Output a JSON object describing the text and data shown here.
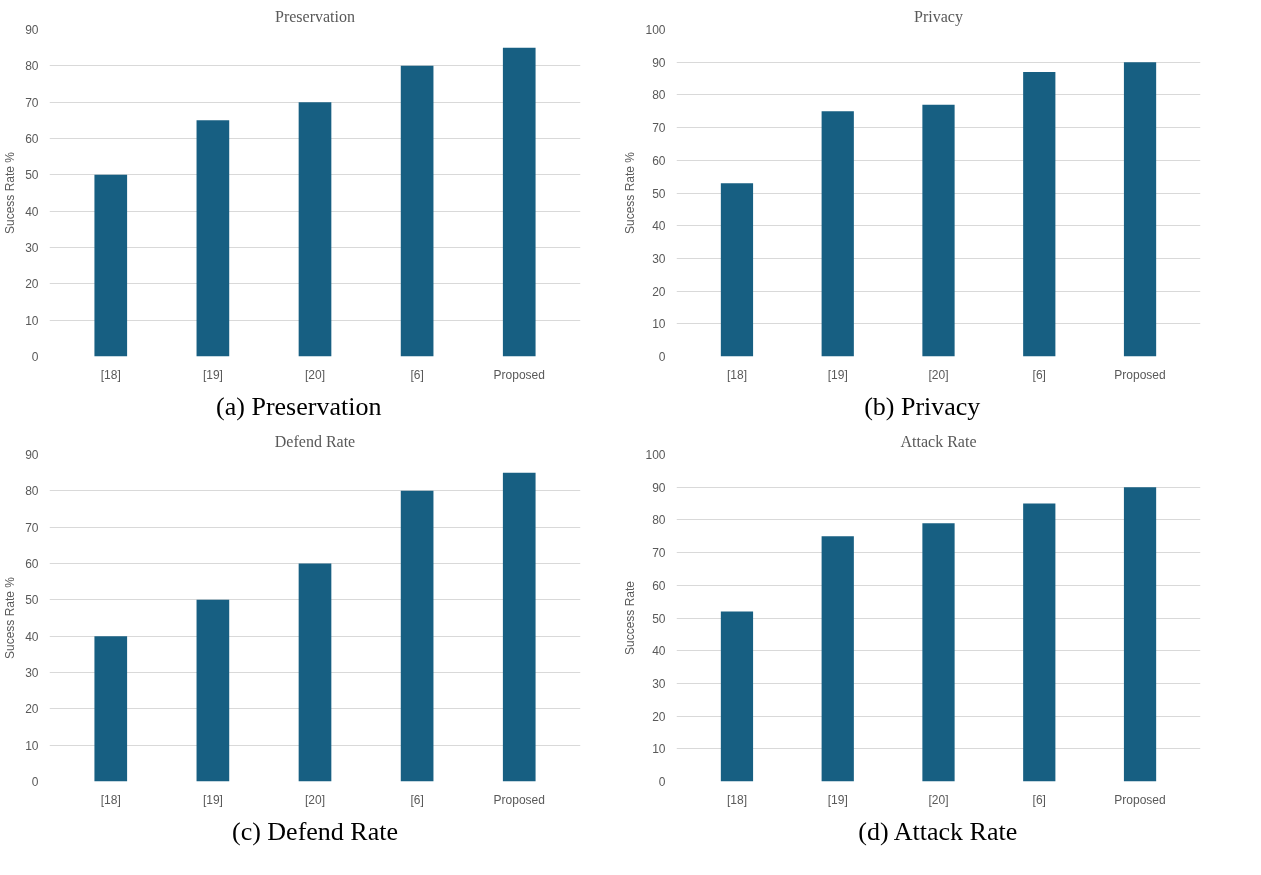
{
  "chart_data": [
    {
      "type": "bar",
      "title": "Preservation",
      "ylabel": "Sucess Rate %",
      "categories": [
        "[18]",
        "[19]",
        "[20]",
        "[6]",
        "Proposed"
      ],
      "values": [
        50,
        65,
        70,
        80,
        85
      ],
      "color": "#175f82",
      "ylim": [
        0,
        90
      ],
      "yticks": [
        0,
        10,
        20,
        30,
        40,
        50,
        60,
        70,
        80,
        90
      ],
      "grid": "y",
      "annotations": [
        "(a)      Preservation"
      ]
    },
    {
      "type": "bar",
      "title": "Privacy",
      "ylabel": "Sucess Rate %",
      "categories": [
        "[18]",
        "[19]",
        "[20]",
        "[6]",
        "Proposed"
      ],
      "values": [
        53,
        75,
        77,
        87,
        90
      ],
      "color": "#175f82",
      "ylim": [
        0,
        100
      ],
      "yticks": [
        0,
        10,
        20,
        30,
        40,
        50,
        60,
        70,
        80,
        90,
        100
      ],
      "grid": "y",
      "annotations": [
        "(b)      Privacy"
      ]
    },
    {
      "type": "bar",
      "title": "Defend Rate",
      "ylabel": "Sucess Rate %",
      "categories": [
        "[18]",
        "[19]",
        "[20]",
        "[6]",
        "Proposed"
      ],
      "values": [
        40,
        50,
        60,
        80,
        85
      ],
      "color": "#175f82",
      "ylim": [
        0,
        90
      ],
      "yticks": [
        0,
        10,
        20,
        30,
        40,
        50,
        60,
        70,
        80,
        90
      ],
      "grid": "y",
      "annotations": [
        "(c) Defend Rate"
      ]
    },
    {
      "type": "bar",
      "title": "Attack Rate",
      "ylabel": "Success Rate",
      "categories": [
        "[18]",
        "[19]",
        "[20]",
        "[6]",
        "Proposed"
      ],
      "values": [
        52,
        75,
        79,
        85,
        90
      ],
      "color": "#175f82",
      "ylim": [
        0,
        100
      ],
      "yticks": [
        0,
        10,
        20,
        30,
        40,
        50,
        60,
        70,
        80,
        90,
        100
      ],
      "grid": "y",
      "annotations": [
        "(d) Attack Rate"
      ]
    }
  ]
}
